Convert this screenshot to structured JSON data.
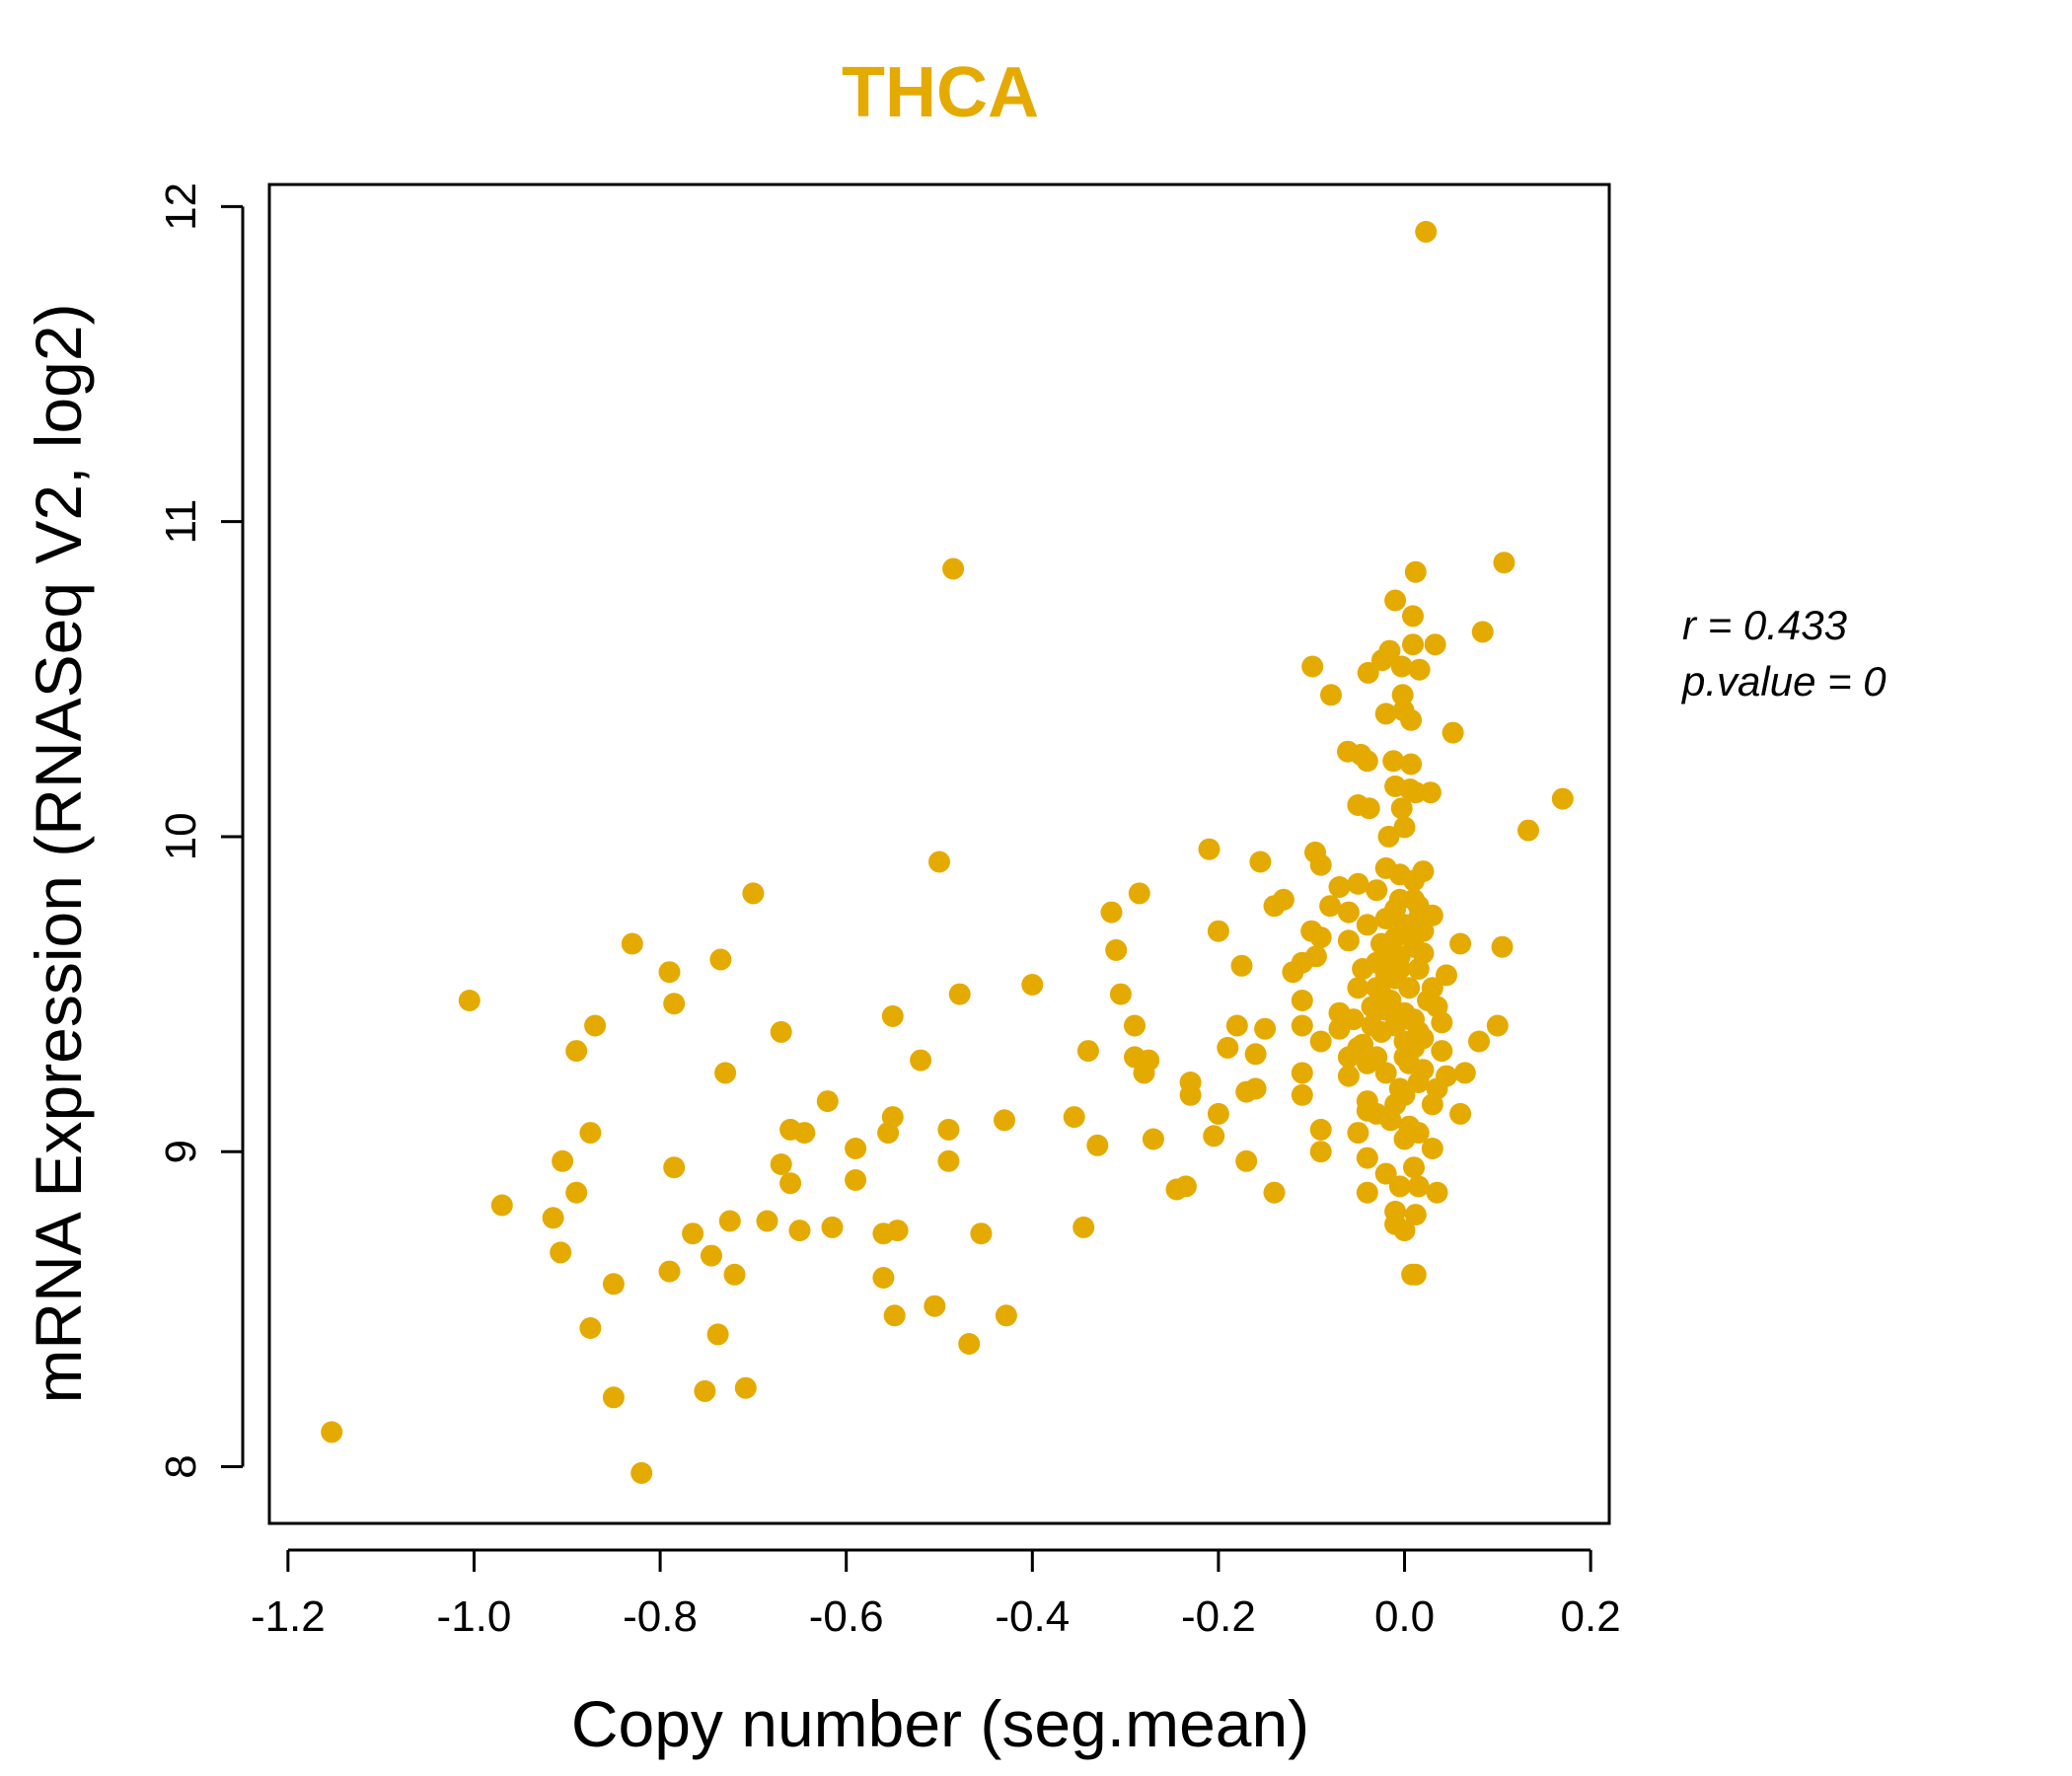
{
  "colors": {
    "points": "#E5AA00",
    "title": "#E5AA00",
    "axis": "#000000",
    "background": "#ffffff"
  },
  "chart_data": {
    "type": "scatter",
    "title": "THCA",
    "xlabel": "Copy number (seg.mean)",
    "ylabel": "mRNA Expression (RNASeq V2, log2)",
    "xlim": [
      -1.22,
      0.22
    ],
    "ylim": [
      7.82,
      12.07
    ],
    "x_ticks": [
      -1.2,
      -1.0,
      -0.8,
      -0.6,
      -0.4,
      -0.2,
      0.0,
      0.2
    ],
    "x_tick_labels": [
      "-1.2",
      "-1.0",
      "-0.8",
      "-0.6",
      "-0.4",
      "-0.2",
      "0.0",
      "0.2"
    ],
    "y_ticks": [
      8,
      9,
      10,
      11,
      12
    ],
    "y_tick_labels": [
      "8",
      "9",
      "10",
      "11",
      "12"
    ],
    "grid": false,
    "legend": "none",
    "annotations": {
      "r_label": "r = 0.433",
      "p_label": "p.value = 0"
    },
    "points": [
      [
        0.023,
        11.92
      ],
      [
        -0.485,
        10.85
      ],
      [
        0.107,
        10.87
      ],
      [
        0.012,
        10.84
      ],
      [
        -0.01,
        10.75
      ],
      [
        0.009,
        10.7
      ],
      [
        0.084,
        10.65
      ],
      [
        0.009,
        10.61
      ],
      [
        0.033,
        10.61
      ],
      [
        -0.016,
        10.59
      ],
      [
        -0.024,
        10.56
      ],
      [
        -0.099,
        10.54
      ],
      [
        -0.003,
        10.54
      ],
      [
        0.016,
        10.53
      ],
      [
        -0.039,
        10.52
      ],
      [
        -0.079,
        10.45
      ],
      [
        -0.002,
        10.45
      ],
      [
        -0.001,
        10.4
      ],
      [
        -0.02,
        10.39
      ],
      [
        0.007,
        10.37
      ],
      [
        0.052,
        10.33
      ],
      [
        -0.061,
        10.27
      ],
      [
        -0.047,
        10.26
      ],
      [
        -0.012,
        10.24
      ],
      [
        -0.04,
        10.24
      ],
      [
        0.007,
        10.23
      ],
      [
        -0.01,
        10.16
      ],
      [
        0.006,
        10.15
      ],
      [
        0.028,
        10.14
      ],
      [
        0.012,
        10.14
      ],
      [
        0.17,
        10.12
      ],
      [
        -0.05,
        10.1
      ],
      [
        -0.038,
        10.09
      ],
      [
        -0.003,
        10.09
      ],
      [
        0.133,
        10.02
      ],
      [
        0.0,
        10.03
      ],
      [
        -0.017,
        10.0
      ],
      [
        -0.21,
        9.96
      ],
      [
        -0.096,
        9.95
      ],
      [
        -0.5,
        9.92
      ],
      [
        -0.155,
        9.92
      ],
      [
        -0.09,
        9.91
      ],
      [
        -0.02,
        9.9
      ],
      [
        -0.005,
        9.88
      ],
      [
        0.02,
        9.89
      ],
      [
        -0.7,
        9.82
      ],
      [
        -0.285,
        9.82
      ],
      [
        -0.13,
        9.8
      ],
      [
        -0.07,
        9.84
      ],
      [
        -0.05,
        9.85
      ],
      [
        -0.03,
        9.83
      ],
      [
        0.01,
        9.8
      ],
      [
        -0.14,
        9.78
      ],
      [
        -0.315,
        9.76
      ],
      [
        0.03,
        9.75
      ],
      [
        -0.08,
        9.78
      ],
      [
        -0.06,
        9.76
      ],
      [
        -0.01,
        9.77
      ],
      [
        0.015,
        9.74
      ],
      [
        -0.2,
        9.7
      ],
      [
        -0.1,
        9.7
      ],
      [
        -0.09,
        9.68
      ],
      [
        -0.04,
        9.72
      ],
      [
        0.005,
        9.7
      ],
      [
        -0.83,
        9.66
      ],
      [
        -0.31,
        9.64
      ],
      [
        -0.11,
        9.6
      ],
      [
        -0.095,
        9.62
      ],
      [
        -0.06,
        9.67
      ],
      [
        0.06,
        9.66
      ],
      [
        0.105,
        9.65
      ],
      [
        -0.79,
        9.57
      ],
      [
        -0.735,
        9.61
      ],
      [
        -0.175,
        9.59
      ],
      [
        -0.12,
        9.57
      ],
      [
        -0.045,
        9.58
      ],
      [
        0.02,
        9.63
      ],
      [
        -0.4,
        9.53
      ],
      [
        -0.478,
        9.5
      ],
      [
        -0.305,
        9.5
      ],
      [
        -0.03,
        9.52
      ],
      [
        -1.005,
        9.48
      ],
      [
        -0.785,
        9.47
      ],
      [
        -0.55,
        9.43
      ],
      [
        -0.11,
        9.48
      ],
      [
        -0.07,
        9.44
      ],
      [
        -0.02,
        9.47
      ],
      [
        0.035,
        9.46
      ],
      [
        -0.87,
        9.4
      ],
      [
        -0.67,
        9.38
      ],
      [
        -0.29,
        9.4
      ],
      [
        -0.18,
        9.4
      ],
      [
        -0.15,
        9.39
      ],
      [
        -0.11,
        9.4
      ],
      [
        -0.07,
        9.39
      ],
      [
        0.04,
        9.41
      ],
      [
        0.1,
        9.4
      ],
      [
        -0.89,
        9.32
      ],
      [
        -0.52,
        9.29
      ],
      [
        -0.34,
        9.32
      ],
      [
        -0.29,
        9.3
      ],
      [
        -0.275,
        9.29
      ],
      [
        -0.19,
        9.33
      ],
      [
        -0.16,
        9.31
      ],
      [
        -0.09,
        9.35
      ],
      [
        -0.05,
        9.33
      ],
      [
        0.08,
        9.35
      ],
      [
        -0.73,
        9.25
      ],
      [
        -0.28,
        9.25
      ],
      [
        -0.23,
        9.22
      ],
      [
        -0.17,
        9.19
      ],
      [
        -0.11,
        9.25
      ],
      [
        -0.06,
        9.24
      ],
      [
        0.045,
        9.24
      ],
      [
        0.065,
        9.25
      ],
      [
        -0.23,
        9.18
      ],
      [
        -0.16,
        9.2
      ],
      [
        -0.11,
        9.18
      ],
      [
        -0.04,
        9.16
      ],
      [
        0.03,
        9.15
      ],
      [
        -0.62,
        9.16
      ],
      [
        -0.55,
        9.11
      ],
      [
        -0.43,
        9.1
      ],
      [
        -0.355,
        9.11
      ],
      [
        -0.2,
        9.12
      ],
      [
        -0.04,
        9.13
      ],
      [
        0.06,
        9.12
      ],
      [
        -0.66,
        9.07
      ],
      [
        -0.49,
        9.07
      ],
      [
        -0.875,
        9.06
      ],
      [
        -0.645,
        9.06
      ],
      [
        -0.555,
        9.06
      ],
      [
        -0.27,
        9.04
      ],
      [
        -0.205,
        9.05
      ],
      [
        -0.09,
        9.07
      ],
      [
        -0.05,
        9.06
      ],
      [
        0.015,
        9.06
      ],
      [
        -0.59,
        9.01
      ],
      [
        -0.33,
        9.02
      ],
      [
        -0.09,
        9.0
      ],
      [
        0.03,
        9.01
      ],
      [
        -0.905,
        8.97
      ],
      [
        -0.67,
        8.96
      ],
      [
        -0.49,
        8.97
      ],
      [
        -0.17,
        8.97
      ],
      [
        -0.04,
        8.98
      ],
      [
        -0.785,
        8.95
      ],
      [
        -0.66,
        8.9
      ],
      [
        -0.59,
        8.91
      ],
      [
        -0.02,
        8.93
      ],
      [
        0.01,
        8.95
      ],
      [
        -0.235,
        8.89
      ],
      [
        -0.245,
        8.88
      ],
      [
        -0.14,
        8.87
      ],
      [
        -0.04,
        8.87
      ],
      [
        -0.005,
        8.89
      ],
      [
        0.015,
        8.89
      ],
      [
        0.035,
        8.87
      ],
      [
        -0.97,
        8.83
      ],
      [
        -0.89,
        8.87
      ],
      [
        -0.915,
        8.79
      ],
      [
        -0.725,
        8.78
      ],
      [
        -0.685,
        8.78
      ],
      [
        -0.01,
        8.81
      ],
      [
        0.012,
        8.8
      ],
      [
        -0.765,
        8.74
      ],
      [
        -0.65,
        8.75
      ],
      [
        -0.615,
        8.76
      ],
      [
        -0.56,
        8.74
      ],
      [
        -0.545,
        8.75
      ],
      [
        -0.455,
        8.74
      ],
      [
        -0.345,
        8.76
      ],
      [
        -0.01,
        8.77
      ],
      [
        0.0,
        8.75
      ],
      [
        -0.907,
        8.68
      ],
      [
        -0.745,
        8.67
      ],
      [
        -0.72,
        8.61
      ],
      [
        -0.79,
        8.62
      ],
      [
        -0.56,
        8.6
      ],
      [
        0.008,
        8.61
      ],
      [
        0.012,
        8.61
      ],
      [
        -0.85,
        8.58
      ],
      [
        -0.505,
        8.51
      ],
      [
        -0.548,
        8.48
      ],
      [
        -0.428,
        8.48
      ],
      [
        -0.875,
        8.44
      ],
      [
        -0.738,
        8.42
      ],
      [
        -0.468,
        8.39
      ],
      [
        -0.752,
        8.24
      ],
      [
        -0.708,
        8.25
      ],
      [
        -0.85,
        8.22
      ],
      [
        -1.153,
        8.11
      ],
      [
        -0.82,
        7.98
      ],
      [
        -0.02,
        9.45
      ],
      [
        -0.01,
        9.55
      ],
      [
        0.0,
        9.35
      ],
      [
        -0.03,
        9.3
      ],
      [
        0.01,
        9.42
      ],
      [
        -0.015,
        9.62
      ],
      [
        0.005,
        9.28
      ],
      [
        -0.025,
        9.5
      ],
      [
        0.015,
        9.58
      ],
      [
        -0.005,
        9.2
      ],
      [
        -0.035,
        9.4
      ],
      [
        0.02,
        9.36
      ],
      [
        -0.01,
        9.68
      ],
      [
        0.0,
        9.72
      ],
      [
        -0.02,
        9.25
      ],
      [
        0.01,
        9.33
      ],
      [
        -0.03,
        9.6
      ],
      [
        0.025,
        9.48
      ],
      [
        -0.015,
        9.1
      ],
      [
        0.005,
        9.52
      ],
      [
        -0.005,
        9.8
      ],
      [
        0.015,
        9.22
      ],
      [
        -0.025,
        9.38
      ],
      [
        0.0,
        9.44
      ],
      [
        -0.04,
        9.28
      ],
      [
        0.01,
        9.65
      ],
      [
        -0.01,
        9.15
      ],
      [
        0.02,
        9.7
      ],
      [
        -0.02,
        9.56
      ],
      [
        0.005,
        9.08
      ],
      [
        -0.035,
        9.46
      ],
      [
        0.015,
        9.38
      ],
      [
        -0.005,
        9.62
      ],
      [
        0.0,
        9.18
      ],
      [
        -0.045,
        9.34
      ],
      [
        0.03,
        9.52
      ],
      [
        -0.01,
        9.4
      ],
      [
        0.01,
        9.86
      ],
      [
        -0.02,
        9.74
      ],
      [
        0.0,
        9.3
      ],
      [
        -0.015,
        9.48
      ],
      [
        0.02,
        9.26
      ],
      [
        -0.03,
        9.12
      ],
      [
        0.005,
        9.42
      ],
      [
        -0.005,
        9.58
      ],
      [
        0.015,
        9.78
      ],
      [
        -0.025,
        9.66
      ],
      [
        0.0,
        9.04
      ],
      [
        -0.055,
        9.42
      ],
      [
        -0.06,
        9.3
      ],
      [
        0.04,
        9.32
      ],
      [
        0.045,
        9.56
      ],
      [
        -0.05,
        9.52
      ],
      [
        0.035,
        9.2
      ]
    ]
  }
}
